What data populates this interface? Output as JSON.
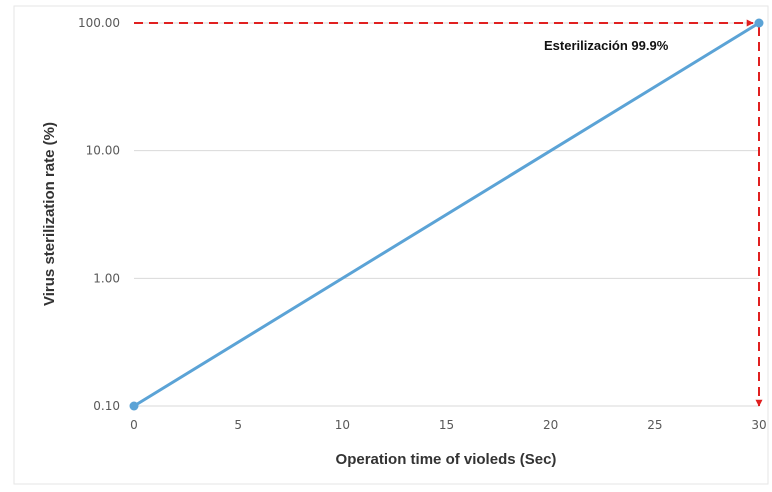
{
  "chart_data": {
    "type": "line",
    "title": "",
    "xlabel": "Operation time of violeds (Sec)",
    "ylabel": "Virus sterilization rate (%)",
    "x_ticks": [
      "0",
      "5",
      "10",
      "15",
      "20",
      "25",
      "30"
    ],
    "x_tick_values": [
      0,
      5,
      10,
      15,
      20,
      25,
      30
    ],
    "y_ticks": [
      "0.10",
      "1.00",
      "10.00",
      "100.00"
    ],
    "y_tick_values": [
      0.1,
      1,
      10,
      100
    ],
    "y_scale": "log",
    "xlim": [
      0,
      30
    ],
    "ylim": [
      0.1,
      100
    ],
    "grid": "horizontal",
    "legend": "none",
    "series": [
      {
        "x": [
          0,
          30
        ],
        "y": [
          0.1,
          100
        ],
        "color": "#5ba3d6"
      }
    ],
    "annotation": {
      "text": "Esterilización 99.9%",
      "x": 30,
      "y": 100,
      "color": "#e02020"
    }
  }
}
